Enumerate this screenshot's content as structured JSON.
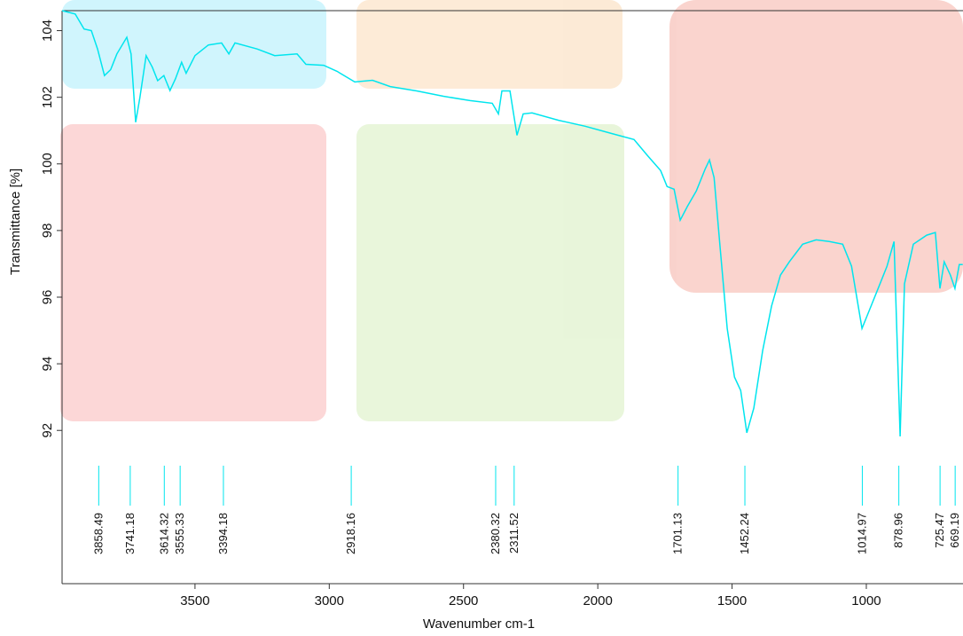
{
  "chart_data": {
    "type": "line",
    "x_label": "Wavenumber cm-1",
    "y_label": "Transmittance [%]",
    "xlim": [
      3995,
      640
    ],
    "ylim": [
      87.4,
      104.6
    ],
    "xticks": [
      3500,
      3000,
      2500,
      2000,
      1500,
      1000
    ],
    "yticks": [
      92,
      94,
      96,
      98,
      100,
      102,
      104
    ],
    "peaks": [
      3858.49,
      3741.18,
      3614.32,
      3555.33,
      3394.18,
      2918.16,
      2380.32,
      2311.52,
      1701.13,
      1452.24,
      1014.97,
      878.96,
      725.47,
      669.19
    ],
    "peak_color": "#00e5ee",
    "series": [
      {
        "color": "#00e5ee",
        "x": [
          3995,
          3946,
          3913,
          3886,
          3863,
          3837,
          3814,
          3791,
          3754,
          3738,
          3721,
          3705,
          3682,
          3659,
          3639,
          3616,
          3593,
          3573,
          3550,
          3533,
          3500,
          3450,
          3401,
          3374,
          3351,
          3269,
          3203,
          3120,
          3087,
          3021,
          2971,
          2905,
          2839,
          2773,
          2674,
          2575,
          2476,
          2393,
          2370,
          2357,
          2327,
          2301,
          2278,
          2245,
          2146,
          2047,
          1947,
          1865,
          1815,
          1766,
          1742,
          1716,
          1693,
          1666,
          1633,
          1600,
          1584,
          1567,
          1544,
          1518,
          1491,
          1468,
          1445,
          1419,
          1386,
          1353,
          1320,
          1287,
          1237,
          1187,
          1138,
          1088,
          1055,
          1016,
          989,
          956,
          923,
          897,
          874,
          858,
          825,
          775,
          743,
          726,
          710,
          687,
          670,
          654,
          641
        ],
        "values": [
          104.6,
          104.5,
          104.05,
          104.0,
          103.45,
          102.65,
          102.83,
          103.3,
          103.8,
          103.3,
          101.25,
          102.0,
          103.25,
          102.9,
          102.5,
          102.65,
          102.2,
          102.55,
          103.05,
          102.72,
          103.25,
          103.57,
          103.63,
          103.3,
          103.63,
          103.45,
          103.25,
          103.3,
          102.99,
          102.96,
          102.78,
          102.46,
          102.51,
          102.32,
          102.19,
          102.03,
          101.9,
          101.82,
          101.5,
          102.19,
          102.19,
          100.86,
          101.5,
          101.53,
          101.31,
          101.13,
          100.91,
          100.73,
          100.25,
          99.8,
          99.32,
          99.24,
          98.31,
          98.73,
          99.19,
          99.85,
          100.12,
          99.59,
          97.46,
          95.06,
          93.6,
          93.2,
          91.93,
          92.67,
          94.4,
          95.73,
          96.66,
          97.06,
          97.59,
          97.72,
          97.67,
          97.59,
          96.93,
          95.06,
          95.6,
          96.26,
          96.93,
          97.67,
          91.82,
          96.4,
          97.59,
          97.86,
          97.94,
          96.26,
          97.06,
          96.66,
          96.26,
          96.98,
          96.98
        ]
      }
    ]
  }
}
